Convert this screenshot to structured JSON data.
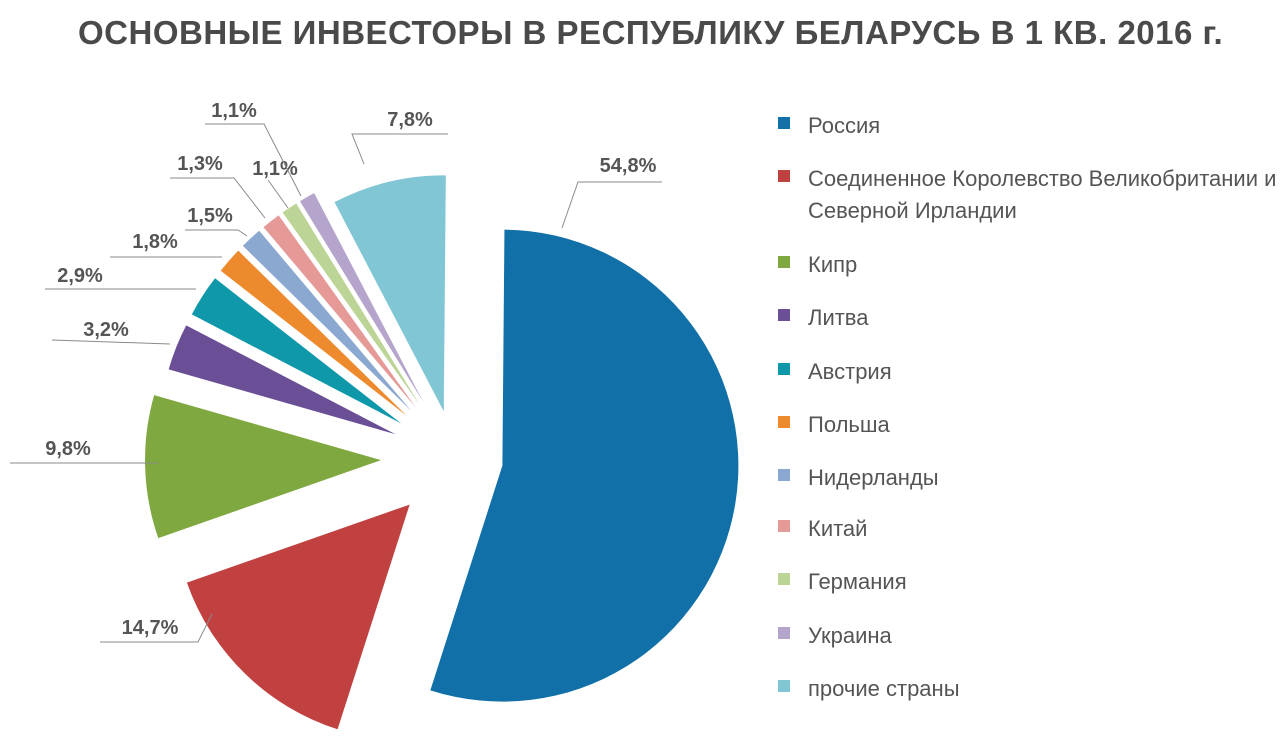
{
  "title": "ОСНОВНЫЕ ИНВЕСТОРЫ В РЕСПУБЛИКУ БЕЛАРУСЬ В 1 КВ. 2016 г.",
  "chart_data": {
    "type": "pie",
    "title": "ОСНОВНЫЕ ИНВЕСТОРЫ В РЕСПУБЛИКУ БЕЛАРУСЬ В 1 КВ. 2016 г.",
    "unit": "%",
    "legend_position": "right",
    "slices": [
      {
        "label": "Россия",
        "value": 54.8,
        "text": "54,8%",
        "color": "#1170a8"
      },
      {
        "label": "Соединенное Королевство Великобритании и Северной Ирландии",
        "value": 14.7,
        "text": "14,7%",
        "color": "#c0413f"
      },
      {
        "label": "Кипр",
        "value": 9.8,
        "text": "9,8%",
        "color": "#80a840"
      },
      {
        "label": "Литва",
        "value": 3.2,
        "text": "3,2%",
        "color": "#6a4e96"
      },
      {
        "label": "Австрия",
        "value": 2.9,
        "text": "2,9%",
        "color": "#0f98aa"
      },
      {
        "label": "Польша",
        "value": 1.8,
        "text": "1,8%",
        "color": "#ee8a2e"
      },
      {
        "label": "Нидерланды",
        "value": 1.5,
        "text": "1,5%",
        "color": "#8aa8d0"
      },
      {
        "label": "Китай",
        "value": 1.3,
        "text": "1,3%",
        "color": "#e59a98"
      },
      {
        "label": "Германия",
        "value": 1.1,
        "text": "1,1%",
        "color": "#bcd496"
      },
      {
        "label": "Украина",
        "value": 1.1,
        "text": "1,1%",
        "color": "#b5a4cc"
      },
      {
        "label": "прочие страны",
        "value": 7.8,
        "text": "7,8%",
        "color": "#80c6d4"
      }
    ]
  }
}
